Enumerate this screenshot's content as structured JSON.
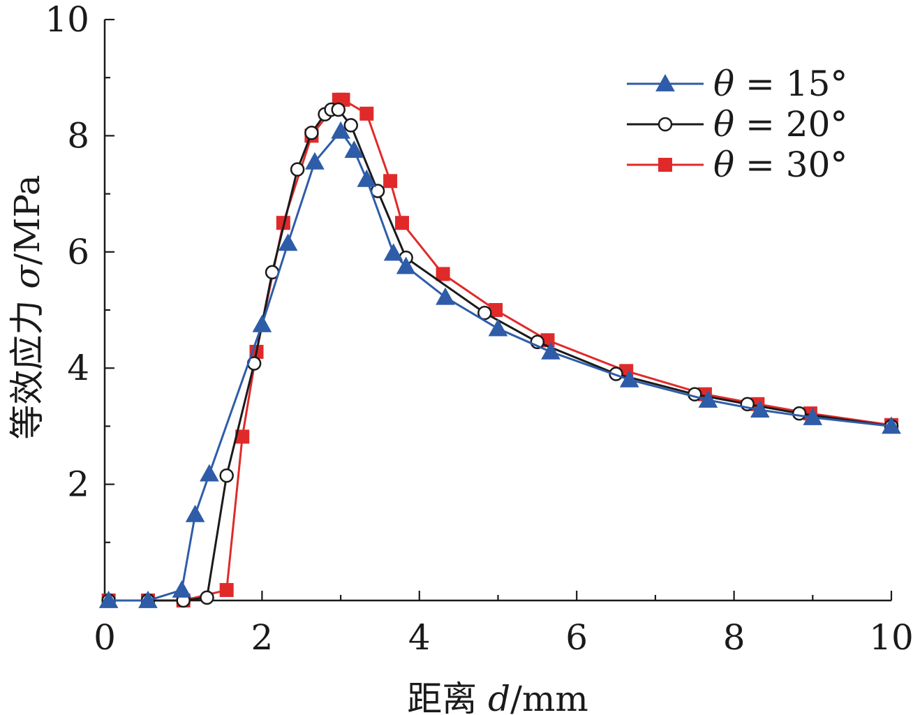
{
  "chart_data": {
    "type": "line",
    "title": "",
    "xlabel": {
      "prefix": "距离 ",
      "var": "d",
      "suffix": "/mm"
    },
    "ylabel": {
      "prefix": "等效应力 ",
      "var": "σ",
      "suffix": "/MPa"
    },
    "xlim": [
      0,
      10
    ],
    "ylim": [
      0,
      10
    ],
    "xticks": [
      0,
      2,
      4,
      6,
      8,
      10
    ],
    "yticks": [
      2,
      4,
      6,
      8,
      10
    ],
    "xtick_labels": [
      "0",
      "2",
      "4",
      "6",
      "8",
      "10"
    ],
    "ytick_labels": [
      "2",
      "4",
      "6",
      "8",
      "10"
    ],
    "grid": false,
    "legend_position": "top-right",
    "series": [
      {
        "name": "θ = 15°",
        "name_var": "θ",
        "name_rest": " = 15°",
        "color": "#2e5ca8",
        "marker": "triangle",
        "x": [
          0.05,
          0.55,
          0.98,
          1.15,
          1.33,
          2.0,
          2.33,
          2.67,
          3.0,
          3.17,
          3.33,
          3.67,
          3.83,
          4.33,
          5.0,
          5.67,
          6.67,
          7.67,
          8.33,
          9.0,
          10.0
        ],
        "y": [
          0.0,
          0.0,
          0.18,
          1.48,
          2.18,
          4.75,
          6.15,
          7.55,
          8.08,
          7.75,
          7.25,
          5.98,
          5.75,
          5.22,
          4.68,
          4.28,
          3.8,
          3.45,
          3.28,
          3.15,
          3.0
        ]
      },
      {
        "name": "θ = 20°",
        "name_var": "θ",
        "name_rest": " = 20°",
        "color": "#1a1a1a",
        "marker": "circle",
        "x": [
          0.05,
          0.55,
          1.0,
          1.3,
          1.55,
          1.9,
          2.13,
          2.45,
          2.63,
          2.8,
          2.88,
          2.97,
          3.13,
          3.47,
          3.83,
          4.83,
          5.5,
          6.5,
          7.5,
          8.17,
          8.83,
          10.0
        ],
        "y": [
          0.0,
          0.0,
          0.0,
          0.05,
          2.15,
          4.08,
          5.65,
          7.42,
          8.05,
          8.37,
          8.45,
          8.45,
          8.18,
          7.05,
          5.9,
          4.95,
          4.45,
          3.9,
          3.55,
          3.38,
          3.22,
          3.0
        ]
      },
      {
        "name": "θ = 30°",
        "name_var": "θ",
        "name_rest": " = 30°",
        "color": "#e02a2a",
        "marker": "square",
        "x": [
          0.05,
          0.55,
          1.0,
          1.55,
          1.75,
          1.93,
          2.27,
          2.63,
          2.98,
          3.03,
          3.33,
          3.63,
          3.78,
          4.3,
          4.97,
          5.63,
          6.63,
          7.63,
          8.3,
          8.97,
          10.0
        ],
        "y": [
          0.0,
          0.0,
          0.0,
          0.18,
          2.82,
          4.28,
          6.5,
          8.0,
          8.62,
          8.62,
          8.38,
          7.22,
          6.5,
          5.62,
          5.0,
          4.48,
          3.95,
          3.55,
          3.38,
          3.22,
          3.02
        ]
      }
    ]
  }
}
